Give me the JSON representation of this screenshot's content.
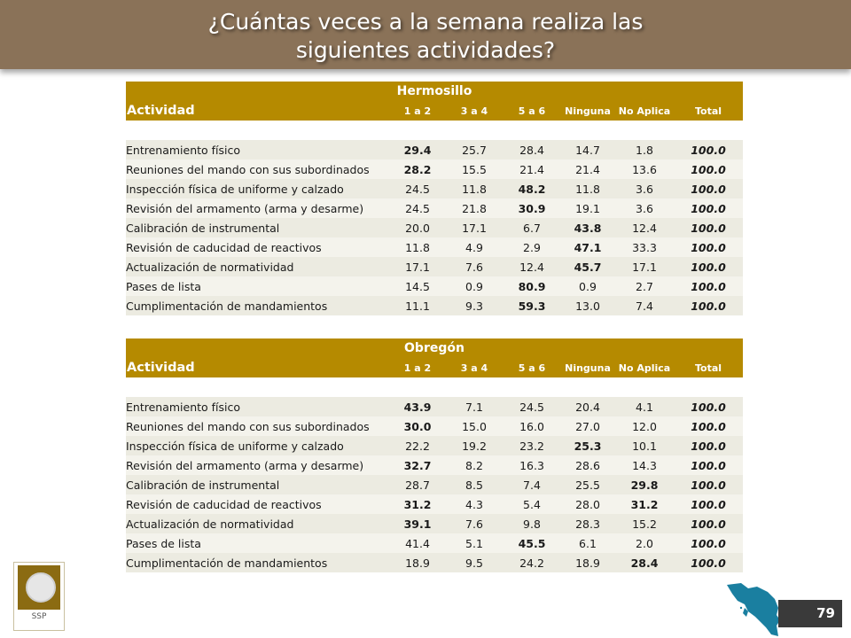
{
  "title": {
    "line1": "¿Cuántas veces a la semana realiza las",
    "line2": "siguientes actividades?"
  },
  "columns": {
    "activity": "Actividad",
    "c1": "1 a 2",
    "c2": "3 a 4",
    "c3": "5 a 6",
    "c4": "Ninguna",
    "c5": "No Aplica",
    "c6": "Total"
  },
  "hermosillo": {
    "region": "Hermosillo",
    "rows": [
      {
        "label": "Entrenamiento físico",
        "v1": "29.4",
        "v2": "25.7",
        "v3": "28.4",
        "v4": "14.7",
        "v5": "1.8",
        "total": "100.0"
      },
      {
        "label": "Reuniones del mando con sus subordinados",
        "v1": "28.2",
        "v2": "15.5",
        "v3": "21.4",
        "v4": "21.4",
        "v5": "13.6",
        "total": "100.0"
      },
      {
        "label": "Inspección física de uniforme y calzado",
        "v1": "24.5",
        "v2": "11.8",
        "v3": "48.2",
        "v4": "11.8",
        "v5": "3.6",
        "total": "100.0"
      },
      {
        "label": "Revisión del armamento (arma y desarme)",
        "v1": "24.5",
        "v2": "21.8",
        "v3": "30.9",
        "v4": "19.1",
        "v5": "3.6",
        "total": "100.0"
      },
      {
        "label": "Calibración de instrumental",
        "v1": "20.0",
        "v2": "17.1",
        "v3": "6.7",
        "v4": "43.8",
        "v5": "12.4",
        "total": "100.0"
      },
      {
        "label": "Revisión de caducidad de reactivos",
        "v1": "11.8",
        "v2": "4.9",
        "v3": "2.9",
        "v4": "47.1",
        "v5": "33.3",
        "total": "100.0"
      },
      {
        "label": "Actualización de normatividad",
        "v1": "17.1",
        "v2": "7.6",
        "v3": "12.4",
        "v4": "45.7",
        "v5": "17.1",
        "total": "100.0"
      },
      {
        "label": "Pases de lista",
        "v1": "14.5",
        "v2": "0.9",
        "v3": "80.9",
        "v4": "0.9",
        "v5": "2.7",
        "total": "100.0"
      },
      {
        "label": "Cumplimentación de mandamientos",
        "v1": "11.1",
        "v2": "9.3",
        "v3": "59.3",
        "v4": "13.0",
        "v5": "7.4",
        "total": "100.0"
      }
    ]
  },
  "obregon": {
    "region": "Obregón",
    "rows": [
      {
        "label": "Entrenamiento físico",
        "v1": "43.9",
        "v2": "7.1",
        "v3": "24.5",
        "v4": "20.4",
        "v5": "4.1",
        "total": "100.0"
      },
      {
        "label": "Reuniones del mando con sus subordinados",
        "v1": "30.0",
        "v2": "15.0",
        "v3": "16.0",
        "v4": "27.0",
        "v5": "12.0",
        "total": "100.0"
      },
      {
        "label": "Inspección física de uniforme y calzado",
        "v1": "22.2",
        "v2": "19.2",
        "v3": "23.2",
        "v4": "25.3",
        "v5": "10.1",
        "total": "100.0"
      },
      {
        "label": "Revisión del armamento (arma y desarme)",
        "v1": "32.7",
        "v2": "8.2",
        "v3": "16.3",
        "v4": "28.6",
        "v5": "14.3",
        "total": "100.0"
      },
      {
        "label": "Calibración de instrumental",
        "v1": "28.7",
        "v2": "8.5",
        "v3": "7.4",
        "v4": "25.5",
        "v5": "29.8",
        "total": "100.0"
      },
      {
        "label": "Revisión de caducidad de reactivos",
        "v1": "31.2",
        "v2": "4.3",
        "v3": "5.4",
        "v4": "28.0",
        "v5": "31.2",
        "total": "100.0"
      },
      {
        "label": "Actualización de normatividad",
        "v1": "39.1",
        "v2": "7.6",
        "v3": "9.8",
        "v4": "28.3",
        "v5": "15.2",
        "total": "100.0"
      },
      {
        "label": "Pases de lista",
        "v1": "41.4",
        "v2": "5.1",
        "v3": "45.5",
        "v4": "6.1",
        "v5": "2.0",
        "total": "100.0"
      },
      {
        "label": "Cumplimentación de mandamientos",
        "v1": "18.9",
        "v2": "9.5",
        "v3": "24.2",
        "v4": "18.9",
        "v5": "28.4",
        "total": "100.0"
      }
    ]
  },
  "logo": {
    "label": "SSP"
  },
  "page": {
    "number": "79"
  },
  "colors": {
    "header_bar": "#8a7258",
    "table_header": "#b58a00",
    "row_bg": "#ecebe1",
    "page_box": "#3a3a3a",
    "map": "#1a7fa0"
  }
}
